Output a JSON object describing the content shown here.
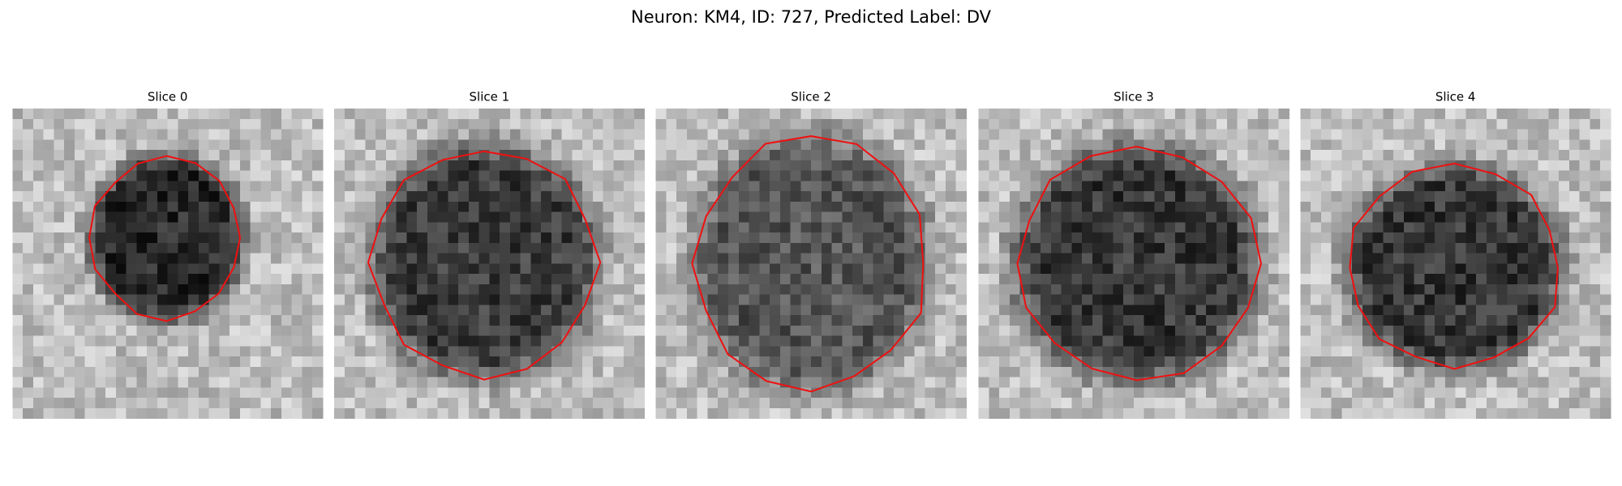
{
  "title": "Neuron: KM4, ID: 727, Predicted Label: DV",
  "panels": [
    {
      "title": "Slice 0"
    },
    {
      "title": "Slice 1"
    },
    {
      "title": "Slice 2"
    },
    {
      "title": "Slice 3"
    },
    {
      "title": "Slice 4"
    }
  ]
}
